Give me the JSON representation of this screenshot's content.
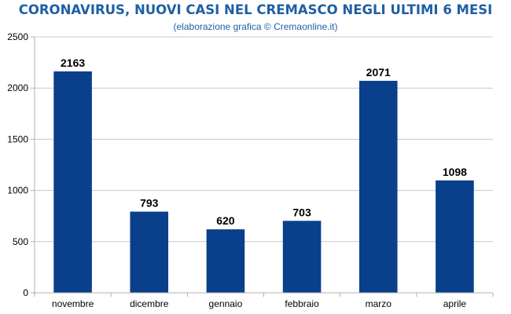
{
  "chart_data": {
    "type": "bar",
    "title": "CORONAVIRUS, NUOVI CASI NEL CREMASCO NEGLI ULTIMI 6 MESI",
    "subtitle": "(elaborazione grafica © Cremaonline.it)",
    "categories": [
      "novembre",
      "dicembre",
      "gennaio",
      "febbraio",
      "marzo",
      "aprile"
    ],
    "values": [
      2163,
      793,
      620,
      703,
      2071,
      1098
    ],
    "data_labels": [
      "2163",
      "793",
      "620",
      "703",
      "2071",
      "1098"
    ],
    "xlabel": "",
    "ylabel": "",
    "ylim": [
      0,
      2500
    ],
    "yticks": [
      0,
      500,
      1000,
      1500,
      2000,
      2500
    ],
    "ytick_labels": [
      "0",
      "500",
      "1000",
      "1500",
      "2000",
      "2500"
    ],
    "grid": true,
    "legend": "none",
    "bar_color": "#0a3f8c"
  }
}
